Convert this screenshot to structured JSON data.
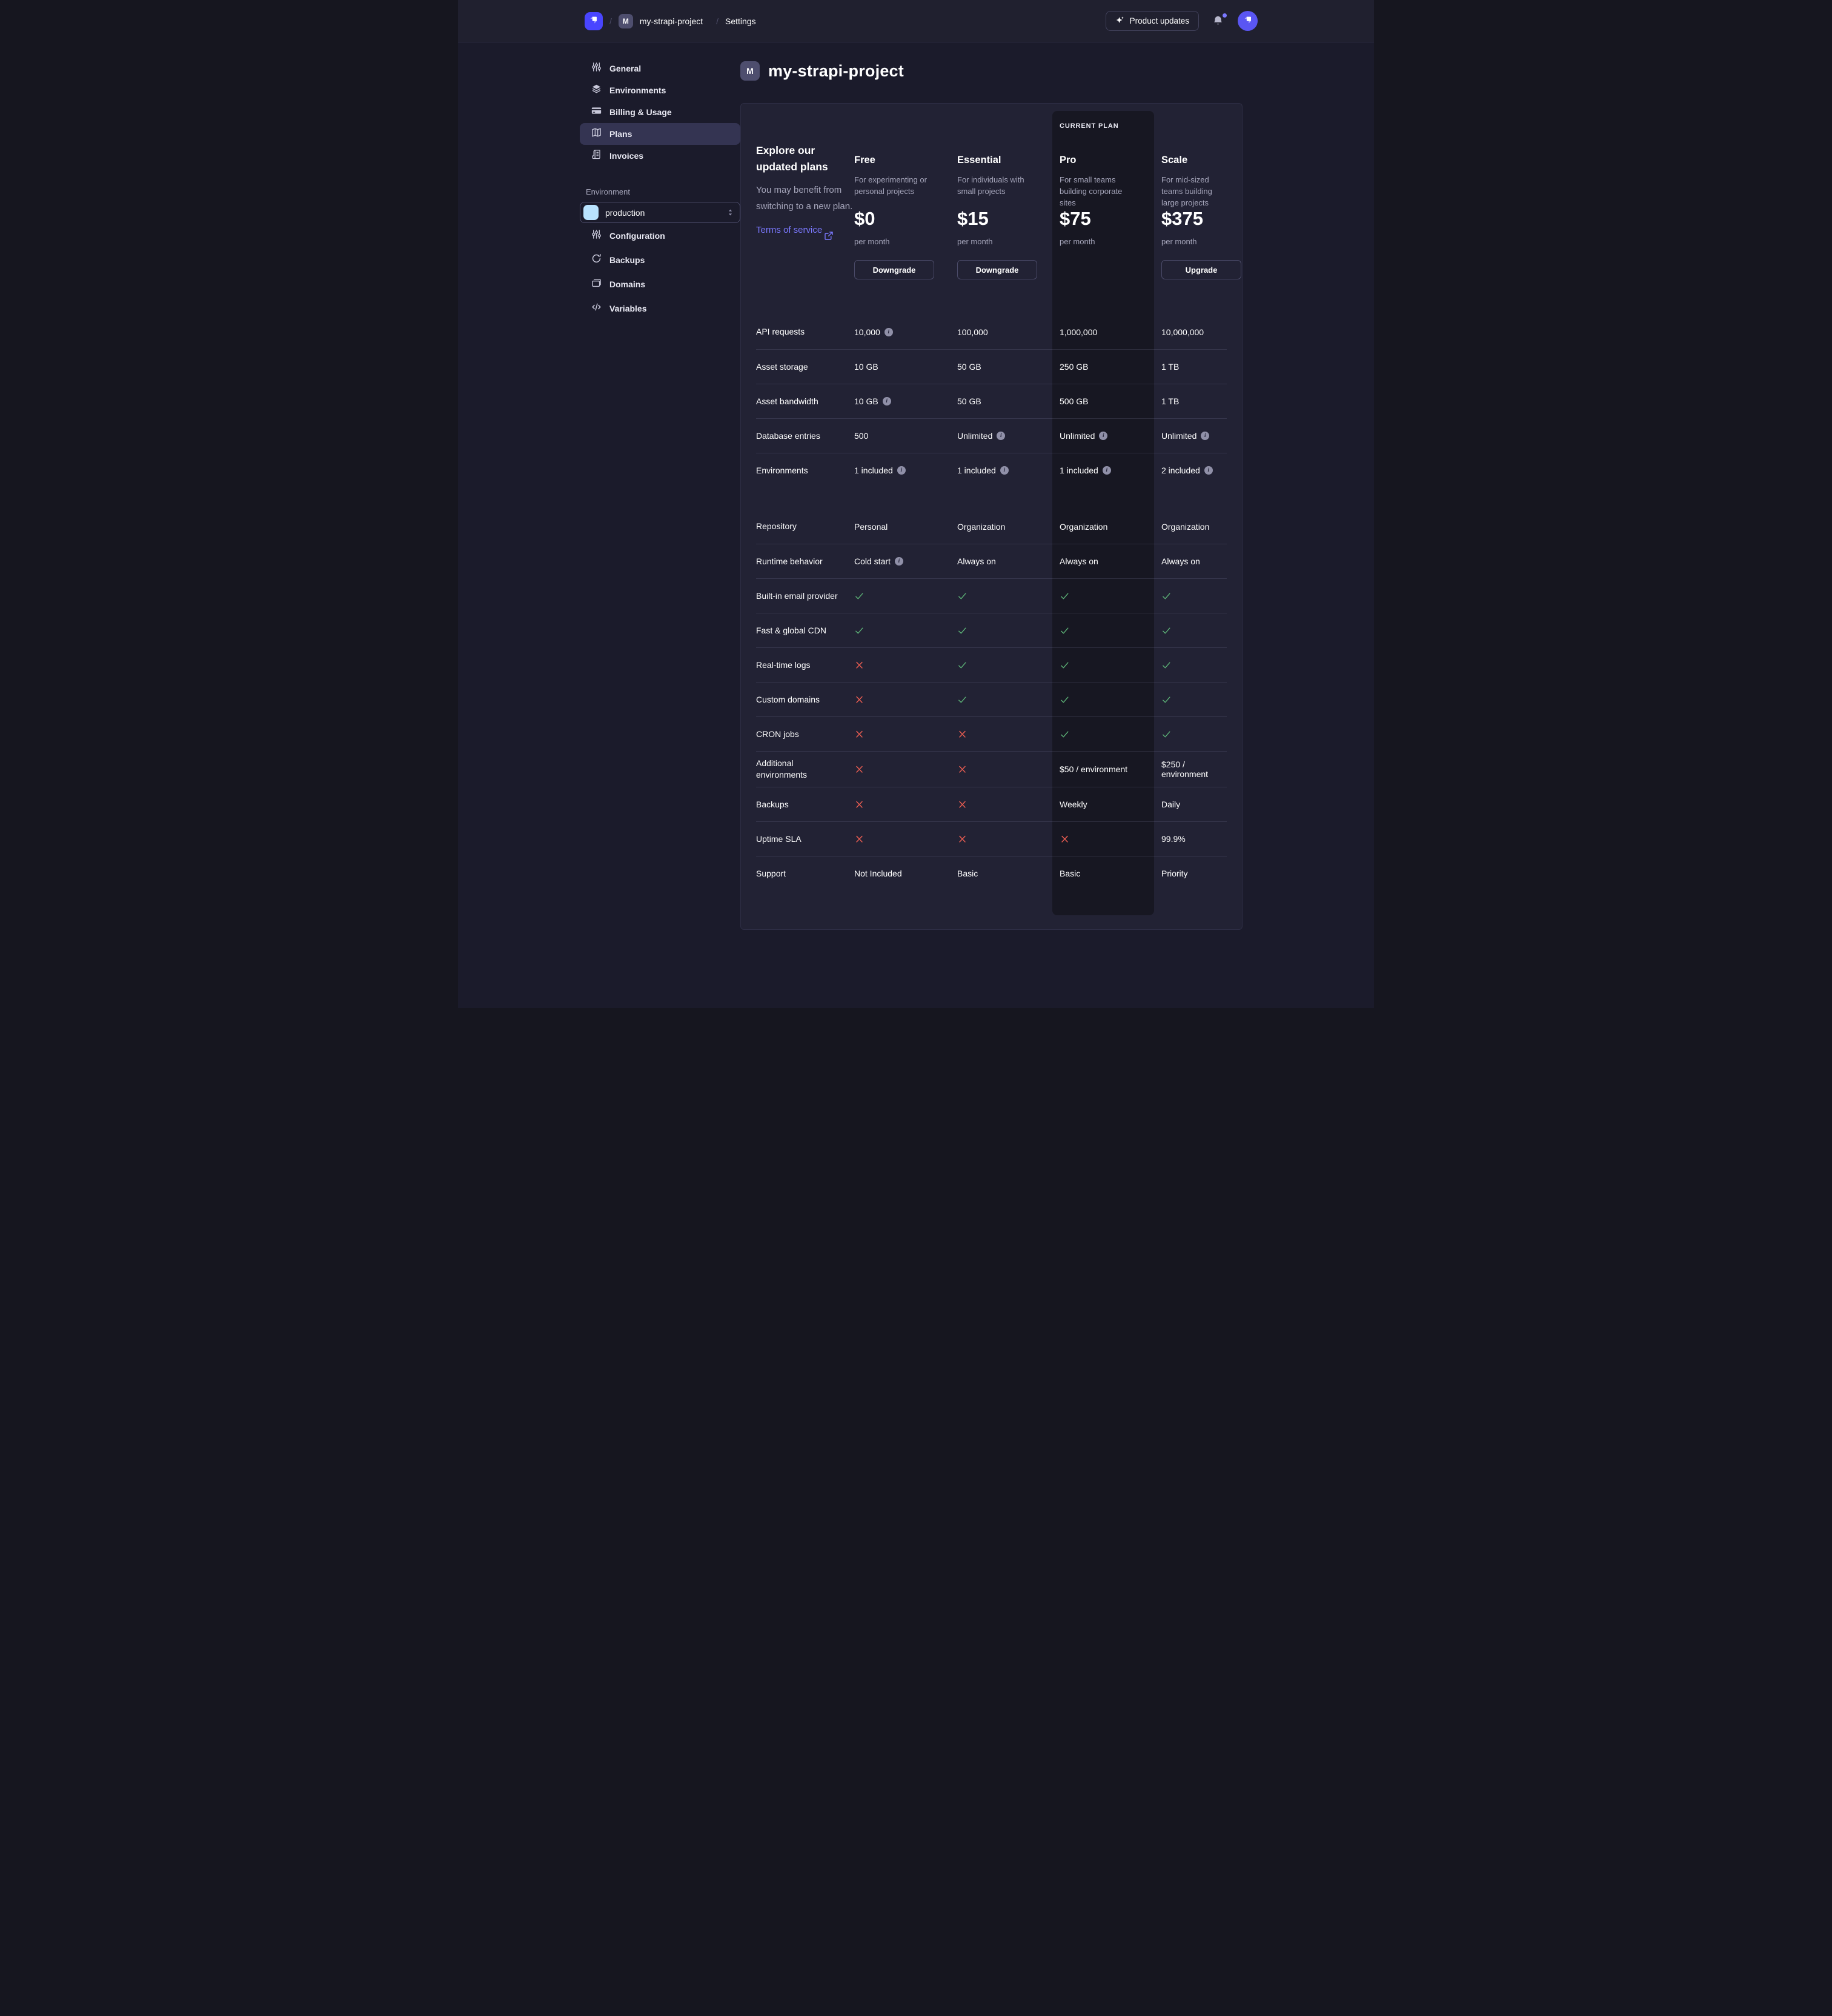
{
  "colors": {
    "accent": "#4945ff",
    "link": "#7b79ff",
    "success": "#5cb176",
    "danger": "#ee5e52"
  },
  "topbar": {
    "breadcrumb": {
      "separator": "/",
      "project_badge": "M",
      "project": "my-strapi-project",
      "section": "Settings"
    },
    "product_updates_label": "Product updates"
  },
  "sidebar": {
    "items": [
      {
        "label": "General",
        "icon": "sliders-icon",
        "active": false
      },
      {
        "label": "Environments",
        "icon": "layers-icon",
        "active": false
      },
      {
        "label": "Billing & Usage",
        "icon": "credit-card-icon",
        "active": false
      },
      {
        "label": "Plans",
        "icon": "map-icon",
        "active": true
      },
      {
        "label": "Invoices",
        "icon": "invoice-icon",
        "active": false
      }
    ],
    "environment_section": {
      "label": "Environment",
      "select_value": "production",
      "select_icon": "layers-icon",
      "items": [
        {
          "label": "Configuration",
          "icon": "sliders-icon"
        },
        {
          "label": "Backups",
          "icon": "refresh-icon"
        },
        {
          "label": "Domains",
          "icon": "folder-icon"
        },
        {
          "label": "Variables",
          "icon": "code-icon"
        }
      ]
    }
  },
  "page": {
    "badge": "M",
    "title": "my-strapi-project"
  },
  "plans": {
    "intro": {
      "title": "Explore our updated plans",
      "subtitle": "You may benefit from switching to a new plan.",
      "link": "Terms of service"
    },
    "current_plan_label": "CURRENT PLAN",
    "columns": [
      {
        "name": "Free",
        "description": "For experimenting or personal projects",
        "price": "$0",
        "period": "per month",
        "action": "Downgrade",
        "current": false
      },
      {
        "name": "Essential",
        "description": "For individuals with small projects",
        "price": "$15",
        "period": "per month",
        "action": "Downgrade",
        "current": false
      },
      {
        "name": "Pro",
        "description": "For small teams building corporate sites",
        "price": "$75",
        "period": "per month",
        "action": null,
        "current": true
      },
      {
        "name": "Scale",
        "description": "For mid-sized teams building large projects",
        "price": "$375",
        "period": "per month",
        "action": "Upgrade",
        "current": false
      }
    ]
  },
  "comparison_table": {
    "rows": [
      {
        "label": "API requests",
        "cells": [
          {
            "text": "10,000",
            "info": true
          },
          {
            "text": "100,000"
          },
          {
            "text": "1,000,000"
          },
          {
            "text": "10,000,000"
          }
        ]
      },
      {
        "label": "Asset storage",
        "cells": [
          {
            "text": "10 GB"
          },
          {
            "text": "50 GB"
          },
          {
            "text": "250 GB"
          },
          {
            "text": "1 TB"
          }
        ]
      },
      {
        "label": "Asset bandwidth",
        "cells": [
          {
            "text": "10 GB",
            "info": true
          },
          {
            "text": "50 GB"
          },
          {
            "text": "500 GB"
          },
          {
            "text": "1 TB"
          }
        ]
      },
      {
        "label": "Database entries",
        "cells": [
          {
            "text": "500"
          },
          {
            "text": "Unlimited",
            "info": true
          },
          {
            "text": "Unlimited",
            "info": true
          },
          {
            "text": "Unlimited",
            "info": true
          }
        ]
      },
      {
        "label": "Environments",
        "cells": [
          {
            "text": "1 included",
            "info": true
          },
          {
            "text": "1 included",
            "info": true
          },
          {
            "text": "1 included",
            "info": true
          },
          {
            "text": "2 included",
            "info": true
          }
        ],
        "gap_after": true
      },
      {
        "label": "Repository",
        "no_separator": true,
        "cells": [
          {
            "text": "Personal"
          },
          {
            "text": "Organization"
          },
          {
            "text": "Organization"
          },
          {
            "text": "Organization"
          }
        ]
      },
      {
        "label": "Runtime behavior",
        "cells": [
          {
            "text": "Cold start",
            "info": true
          },
          {
            "text": "Always on"
          },
          {
            "text": "Always on"
          },
          {
            "text": "Always on"
          }
        ]
      },
      {
        "label": "Built-in email provider",
        "cells": [
          {
            "check": true
          },
          {
            "check": true
          },
          {
            "check": true
          },
          {
            "check": true
          }
        ]
      },
      {
        "label": "Fast & global CDN",
        "cells": [
          {
            "check": true
          },
          {
            "check": true
          },
          {
            "check": true
          },
          {
            "check": true
          }
        ]
      },
      {
        "label": "Real-time logs",
        "cells": [
          {
            "check": false
          },
          {
            "check": true
          },
          {
            "check": true
          },
          {
            "check": true
          }
        ]
      },
      {
        "label": "Custom domains",
        "cells": [
          {
            "check": false
          },
          {
            "check": true
          },
          {
            "check": true
          },
          {
            "check": true
          }
        ]
      },
      {
        "label": "CRON jobs",
        "cells": [
          {
            "check": false
          },
          {
            "check": false
          },
          {
            "check": true
          },
          {
            "check": true
          }
        ]
      },
      {
        "label": "Additional environments",
        "cells": [
          {
            "check": false
          },
          {
            "check": false
          },
          {
            "text": "$50 / environment"
          },
          {
            "text": "$250 / environment"
          }
        ]
      },
      {
        "label": "Backups",
        "cells": [
          {
            "check": false
          },
          {
            "check": false
          },
          {
            "text": "Weekly"
          },
          {
            "text": "Daily"
          }
        ]
      },
      {
        "label": "Uptime SLA",
        "cells": [
          {
            "check": false
          },
          {
            "check": false
          },
          {
            "check": false
          },
          {
            "text": "99.9%"
          }
        ]
      },
      {
        "label": "Support",
        "cells": [
          {
            "text": "Not Included"
          },
          {
            "text": "Basic"
          },
          {
            "text": "Basic"
          },
          {
            "text": "Priority"
          }
        ]
      }
    ]
  }
}
